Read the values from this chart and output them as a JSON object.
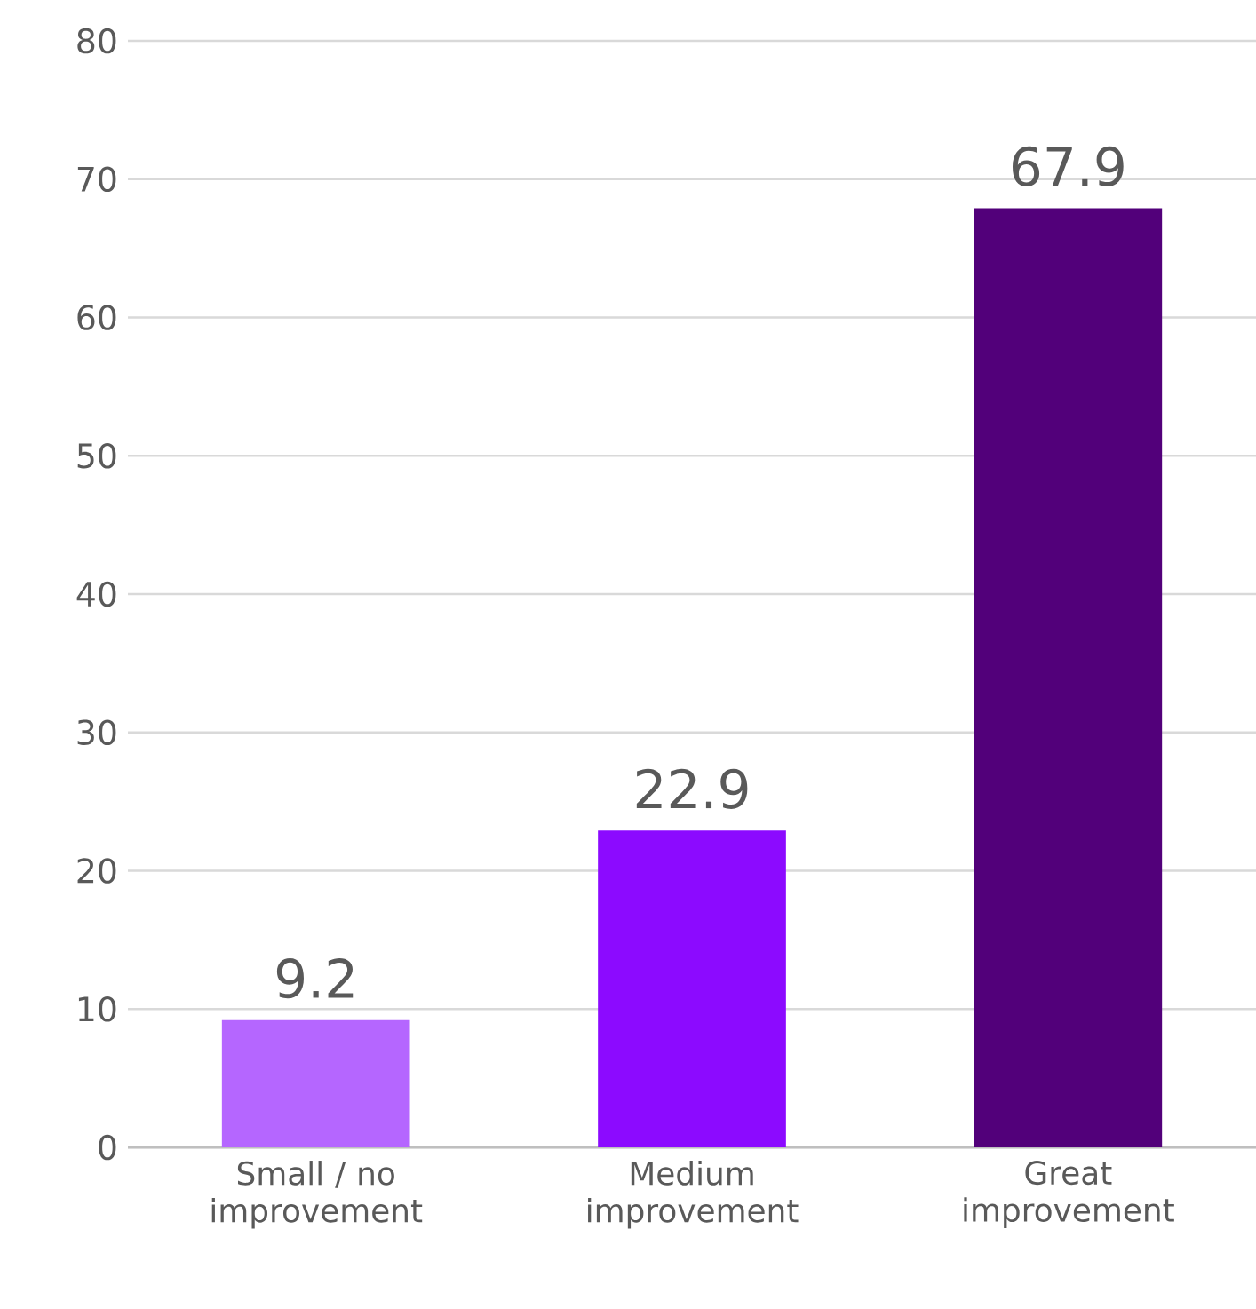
{
  "chart_data": {
    "type": "bar",
    "categories": [
      "Small / no improvement",
      "Medium improvement",
      "Great improvement"
    ],
    "values": [
      9.2,
      22.9,
      67.9
    ],
    "colors": [
      "#b566ff",
      "#8c0aff",
      "#52007a"
    ],
    "ylim": [
      0,
      80
    ],
    "yticks": [
      0,
      10,
      20,
      30,
      40,
      50,
      60,
      70,
      80
    ],
    "grid": "y",
    "data_labels": true
  }
}
